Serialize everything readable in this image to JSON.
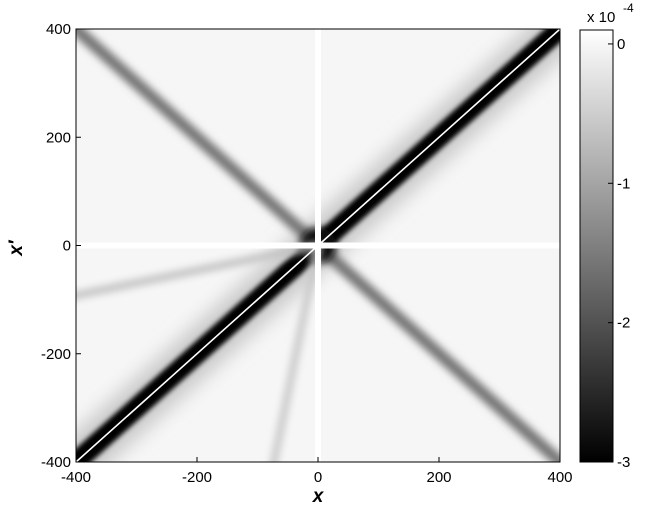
{
  "chart_data": {
    "type": "heatmap",
    "xlabel": "x",
    "ylabel": "x′",
    "xlim": [
      -400,
      400
    ],
    "ylim": [
      -400,
      400
    ],
    "x_ticks": [
      -400,
      -200,
      0,
      200,
      400
    ],
    "y_ticks": [
      -400,
      -200,
      0,
      200,
      400
    ],
    "x_tick_labels": [
      "-400",
      "-200",
      "0",
      "200",
      "400"
    ],
    "y_tick_labels": [
      "-400",
      "-200",
      "0",
      "200",
      "400"
    ],
    "colormap": "gray",
    "colorbar": {
      "scale_label": "x 10",
      "scale_exponent": "-4",
      "clim": [
        -3,
        0.1
      ],
      "ticks": [
        0,
        -1,
        -2,
        -3
      ],
      "tick_labels": [
        "0",
        "-1",
        "-2",
        "-3"
      ]
    },
    "features": [
      {
        "name": "diagonal x′ = x",
        "slope": 1,
        "min_value": -3.0
      },
      {
        "name": "anti-diagonal x′ = -x",
        "slope": -1,
        "min_value": -1.6
      },
      {
        "name": "faint ray lower-left, near horizontal",
        "slope": 0.23,
        "min_value": -0.7
      },
      {
        "name": "faint ray lower-left, near vertical",
        "slope": 5.5,
        "min_value": -0.6
      }
    ],
    "grid": false
  }
}
